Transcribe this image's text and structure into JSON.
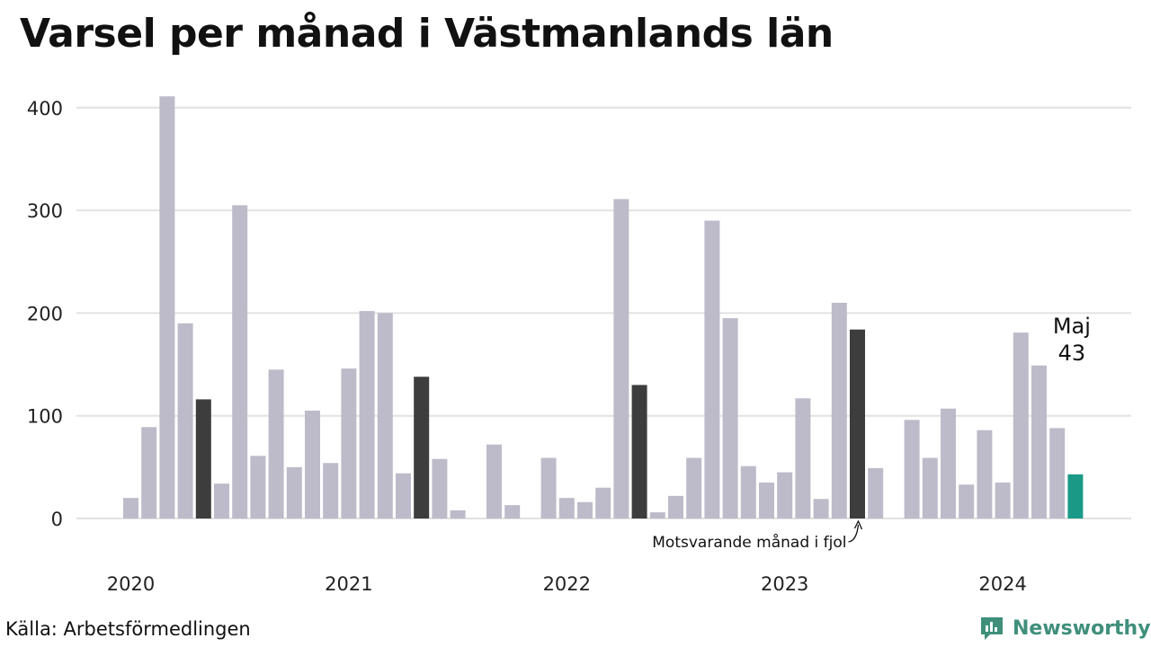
{
  "title": "Varsel per månad i Västmanlands län",
  "source": "Källa: Arbetsförmedlingen",
  "brand": "Newsworthy",
  "colors": {
    "bar": "#bdbbc9",
    "highlight_previous": "#3d3d3d",
    "current": "#1a9a86",
    "grid": "#e2e2e2",
    "brand": "#3f8f7b"
  },
  "chart_data": {
    "type": "bar",
    "title": "Varsel per månad i Västmanlands län",
    "xlabel": "",
    "ylabel": "",
    "ylim": [
      0,
      420
    ],
    "yticks": [
      0,
      100,
      200,
      300,
      400
    ],
    "grid": true,
    "year_labels": [
      "2020",
      "2021",
      "2022",
      "2023",
      "2024"
    ],
    "months": [
      "2020-01",
      "2020-02",
      "2020-03",
      "2020-04",
      "2020-05",
      "2020-06",
      "2020-07",
      "2020-08",
      "2020-09",
      "2020-10",
      "2020-11",
      "2020-12",
      "2021-01",
      "2021-02",
      "2021-03",
      "2021-04",
      "2021-05",
      "2021-06",
      "2021-07",
      "2021-08",
      "2021-09",
      "2021-10",
      "2021-11",
      "2021-12",
      "2022-01",
      "2022-02",
      "2022-03",
      "2022-04",
      "2022-05",
      "2022-06",
      "2022-07",
      "2022-08",
      "2022-09",
      "2022-10",
      "2022-11",
      "2022-12",
      "2023-01",
      "2023-02",
      "2023-03",
      "2023-04",
      "2023-05",
      "2023-06",
      "2023-07",
      "2023-08",
      "2023-09",
      "2023-10",
      "2023-11",
      "2023-12",
      "2024-01",
      "2024-02",
      "2024-03",
      "2024-04",
      "2024-05"
    ],
    "values": [
      20,
      89,
      411,
      190,
      116,
      34,
      305,
      61,
      145,
      50,
      105,
      54,
      146,
      202,
      200,
      44,
      138,
      58,
      8,
      0,
      72,
      13,
      0,
      59,
      20,
      16,
      30,
      311,
      130,
      6,
      22,
      59,
      290,
      195,
      51,
      35,
      45,
      117,
      19,
      210,
      184,
      49,
      0,
      96,
      59,
      107,
      33,
      86,
      35,
      181,
      149,
      88,
      43
    ],
    "highlighted_previous_years": [
      "2020-05",
      "2021-05",
      "2022-05",
      "2023-05"
    ],
    "current_month": "2024-05",
    "current_label": "Maj",
    "current_value_label": "43",
    "annotation": "Motsvarande månad i fjol"
  }
}
